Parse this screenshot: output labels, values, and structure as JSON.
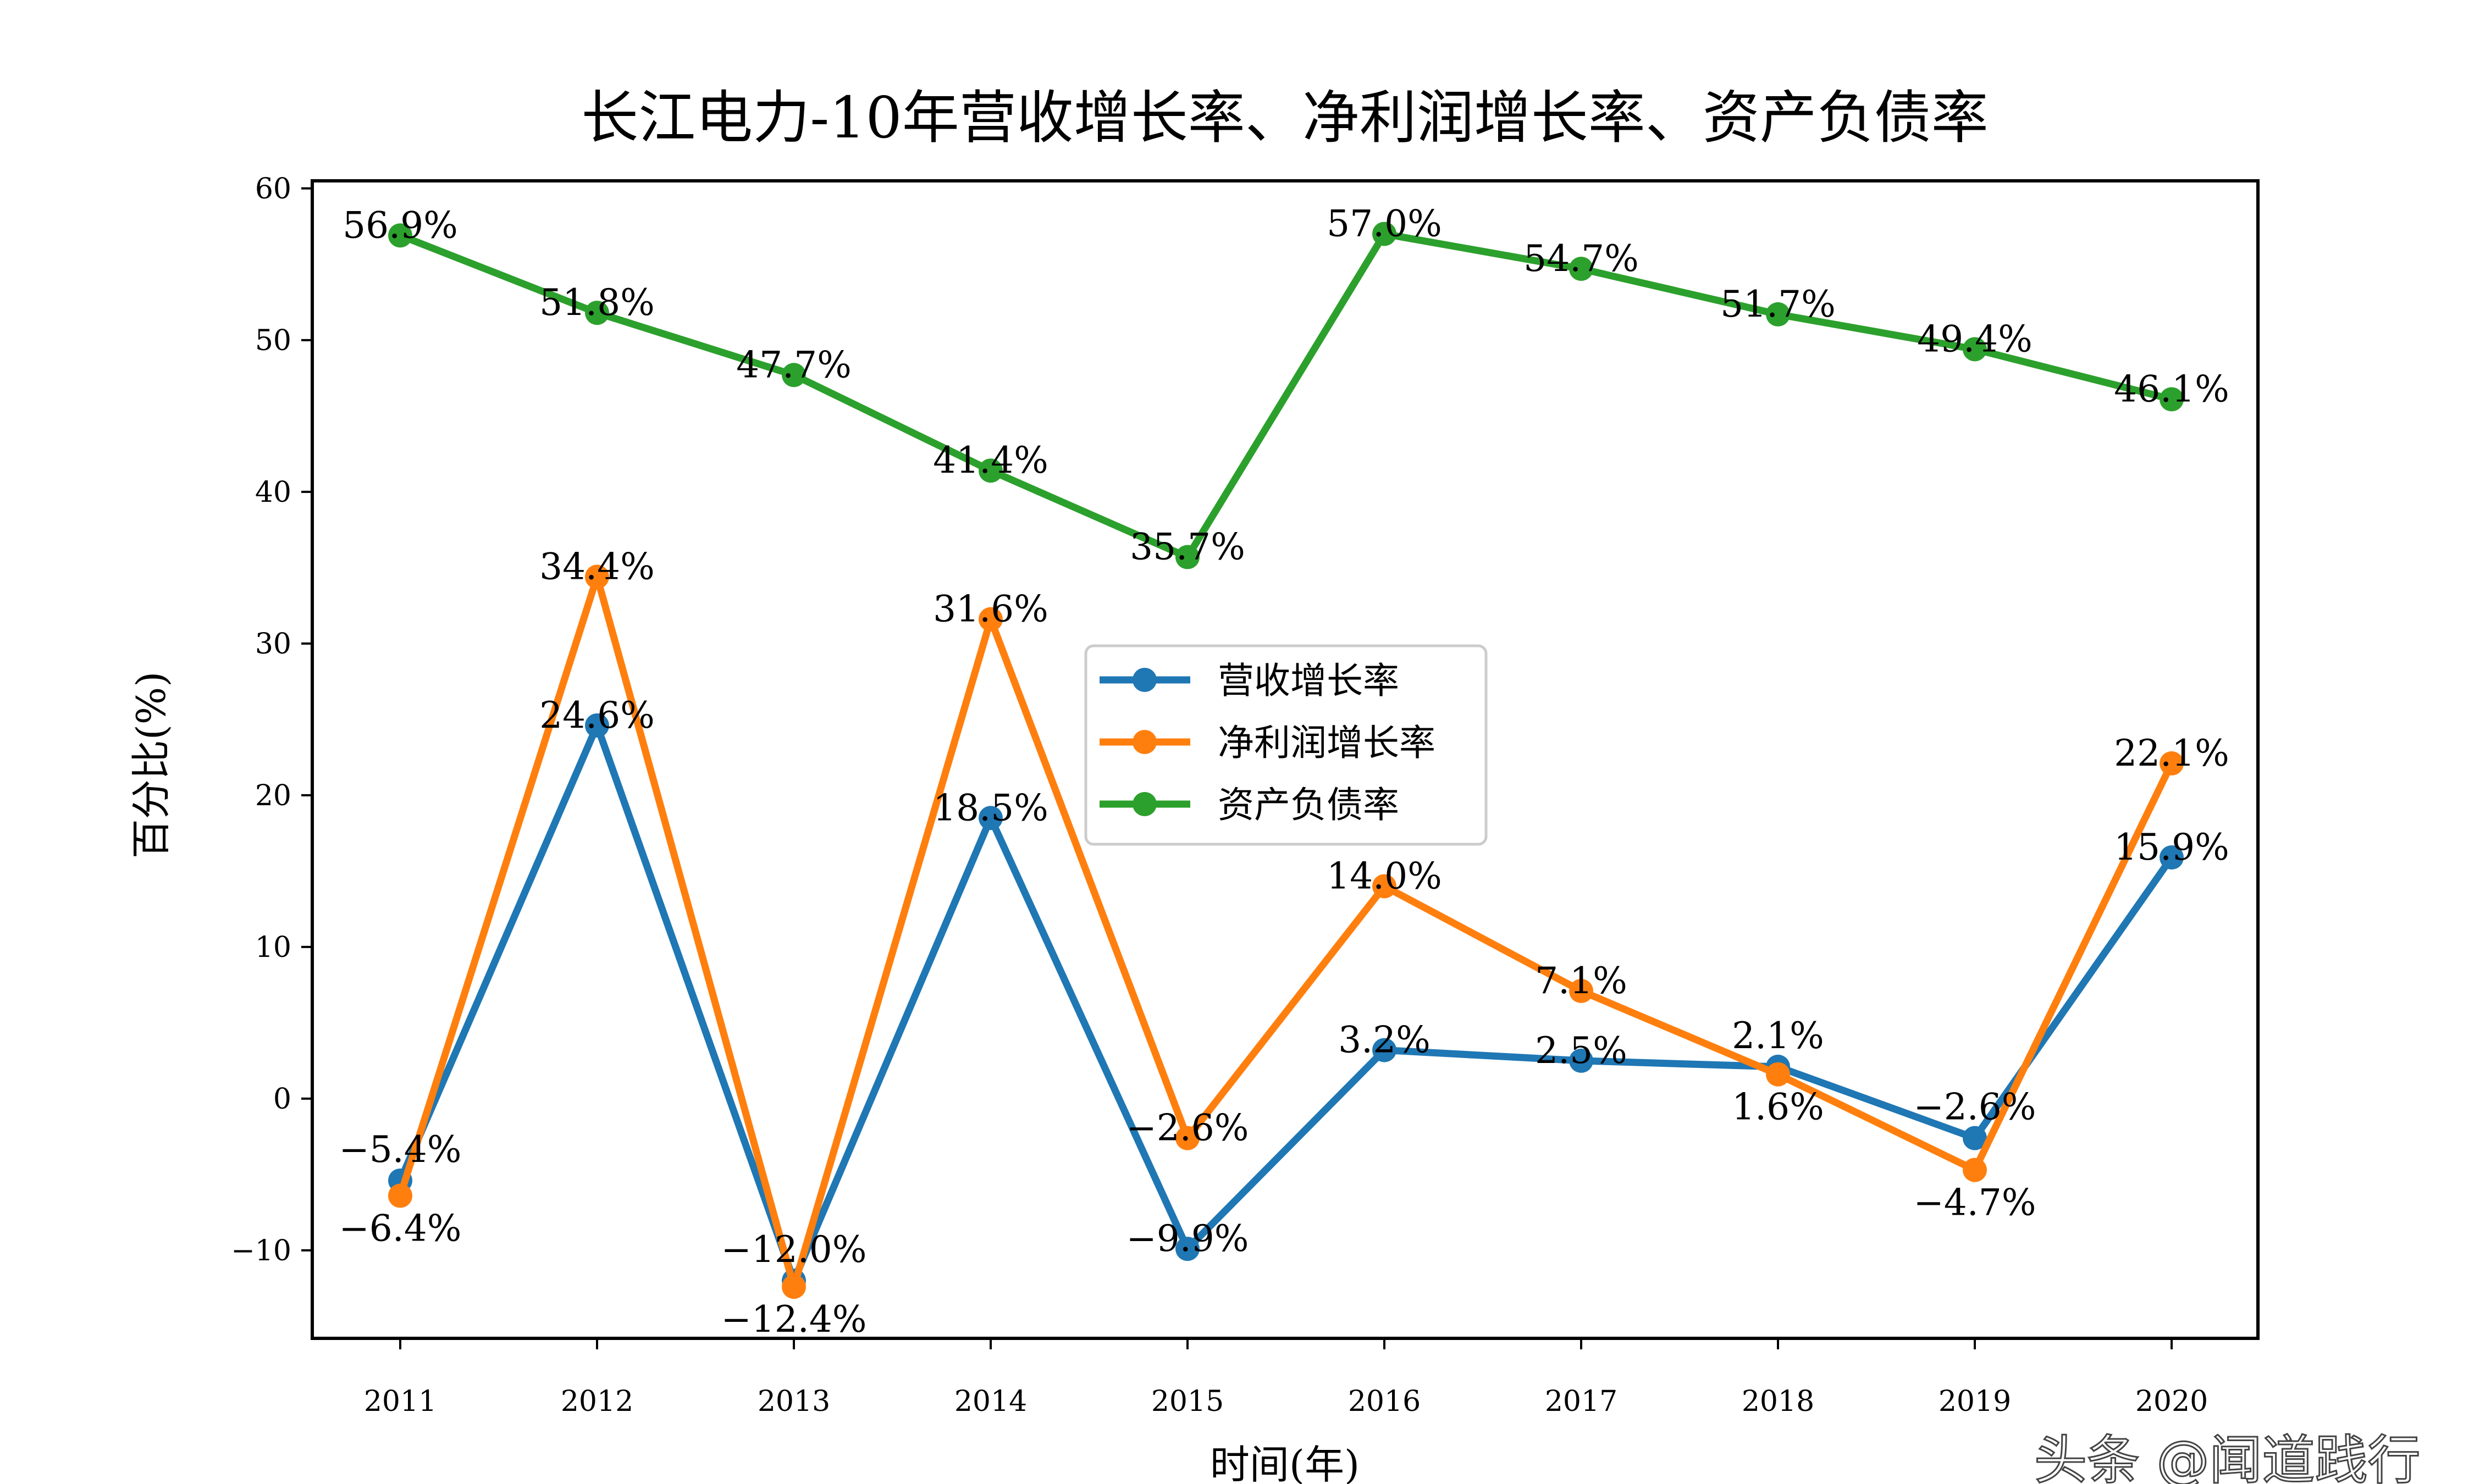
{
  "chart_data": {
    "type": "line",
    "title": "长江电力-10年营收增长率、净利润增长率、资产负债率",
    "xlabel": "时间(年)",
    "ylabel": "百分比(%)",
    "categories": [
      "2011",
      "2012",
      "2013",
      "2014",
      "2015",
      "2016",
      "2017",
      "2018",
      "2019",
      "2020"
    ],
    "ylim": [
      -15.8,
      60.5
    ],
    "yticks": [
      -10,
      0,
      10,
      20,
      30,
      40,
      50,
      60
    ],
    "grid": false,
    "legend_position": "center",
    "series": [
      {
        "name": "营收增长率",
        "color": "#1f77b4",
        "values": [
          -5.4,
          24.6,
          -12.0,
          18.5,
          -9.9,
          3.2,
          2.5,
          2.1,
          -2.6,
          15.9
        ],
        "labels": [
          "-5.4%",
          "24.6%",
          "-12.0%",
          "18.5%",
          "-9.9%",
          "3.2%",
          "2.5%",
          "2.1%",
          "-2.6%",
          "15.9%"
        ]
      },
      {
        "name": "净利润增长率",
        "color": "#ff7f0e",
        "values": [
          -6.4,
          34.4,
          -12.4,
          31.6,
          -2.6,
          14.0,
          7.1,
          1.6,
          -4.7,
          22.1
        ],
        "labels": [
          "-6.4%",
          "34.4%",
          "-12.4%",
          "31.6%",
          "-2.6%",
          "14.0%",
          "7.1%",
          "1.6%",
          "-4.7%",
          "22.1%"
        ]
      },
      {
        "name": "资产负债率",
        "color": "#2ca02c",
        "values": [
          56.9,
          51.8,
          47.7,
          41.4,
          35.7,
          57.0,
          54.7,
          51.7,
          49.4,
          46.1
        ],
        "labels": [
          "56.9%",
          "51.8%",
          "47.7%",
          "41.4%",
          "35.7%",
          "57.0%",
          "54.7%",
          "51.7%",
          "49.4%",
          "46.1%"
        ]
      }
    ]
  },
  "watermark": "头条 @闻道践行"
}
